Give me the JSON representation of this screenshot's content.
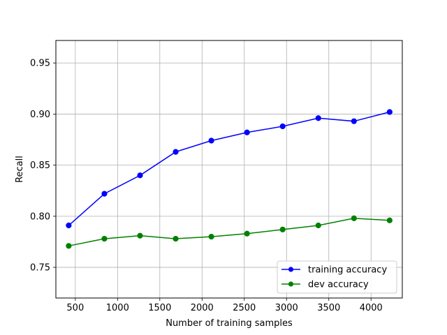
{
  "chart_data": {
    "type": "line",
    "title": "",
    "xlabel": "Number of training samples",
    "ylabel": "Recall",
    "xlim": [
      270,
      4370
    ],
    "ylim": [
      0.72,
      0.972
    ],
    "xticks": [
      500,
      1000,
      1500,
      2000,
      2500,
      3000,
      3500,
      4000
    ],
    "xtick_labels": [
      "500",
      "1000",
      "1500",
      "2000",
      "2500",
      "3000",
      "3500",
      "4000"
    ],
    "yticks": [
      0.75,
      0.8,
      0.85,
      0.9,
      0.95
    ],
    "ytick_labels": [
      "0.75",
      "0.80",
      "0.85",
      "0.90",
      "0.95"
    ],
    "grid": true,
    "legend_position": "lower-right",
    "x": [
      422,
      844,
      1266,
      1688,
      2110,
      2532,
      2954,
      3376,
      3798,
      4220
    ],
    "series": [
      {
        "name": "training accuracy",
        "color": "#0000ff",
        "values": [
          0.791,
          0.822,
          0.84,
          0.863,
          0.874,
          0.882,
          0.888,
          0.896,
          0.893,
          0.902
        ]
      },
      {
        "name": "dev accuracy",
        "color": "#008000",
        "values": [
          0.771,
          0.778,
          0.781,
          0.778,
          0.78,
          0.783,
          0.787,
          0.791,
          0.798,
          0.796
        ]
      }
    ]
  }
}
